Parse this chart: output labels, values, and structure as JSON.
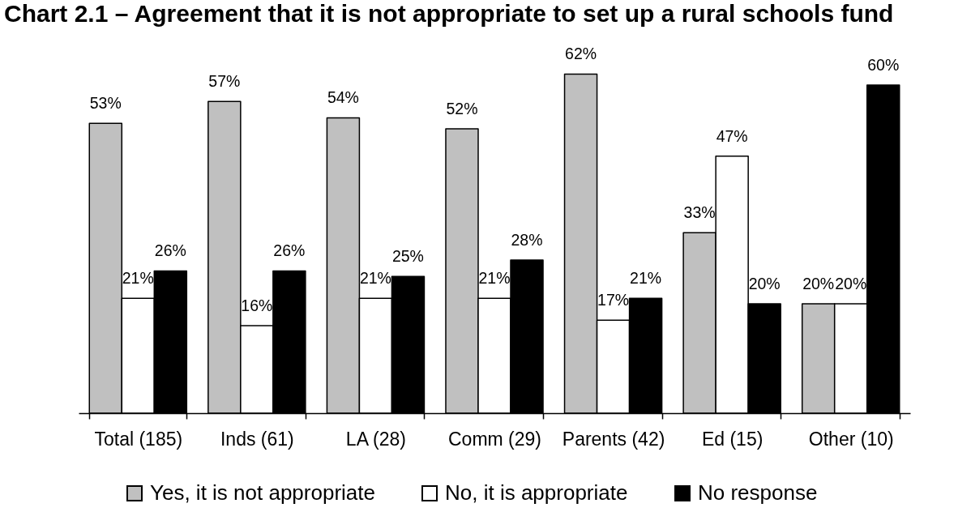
{
  "chart_data": {
    "type": "bar",
    "title": "Chart 2.1 – Agreement that it is not appropriate to set up a rural schools fund",
    "categories": [
      "Total (185)",
      "Inds (61)",
      "LA (28)",
      "Comm (29)",
      "Parents (42)",
      "Ed (15)",
      "Other (10)"
    ],
    "series": [
      {
        "name": "Yes, it is not appropriate",
        "color": "#c0c0c0",
        "values": [
          53,
          57,
          54,
          52,
          62,
          33,
          20
        ],
        "value_labels": [
          "53%",
          "57%",
          "54%",
          "52%",
          "62%",
          "33%",
          "20%"
        ]
      },
      {
        "name": "No, it is appropriate",
        "color": "#ffffff",
        "values": [
          21,
          16,
          21,
          21,
          17,
          47,
          20
        ],
        "value_labels": [
          "21%",
          "16%",
          "21%",
          "21%",
          "17%",
          "47%",
          "20%"
        ]
      },
      {
        "name": "No response",
        "color": "#000000",
        "values": [
          26,
          26,
          25,
          28,
          21,
          20,
          60
        ],
        "value_labels": [
          "26%",
          "26%",
          "25%",
          "28%",
          "21%",
          "20%",
          "60%"
        ]
      }
    ],
    "legend": "bottom",
    "tick_labels": "x"
  }
}
